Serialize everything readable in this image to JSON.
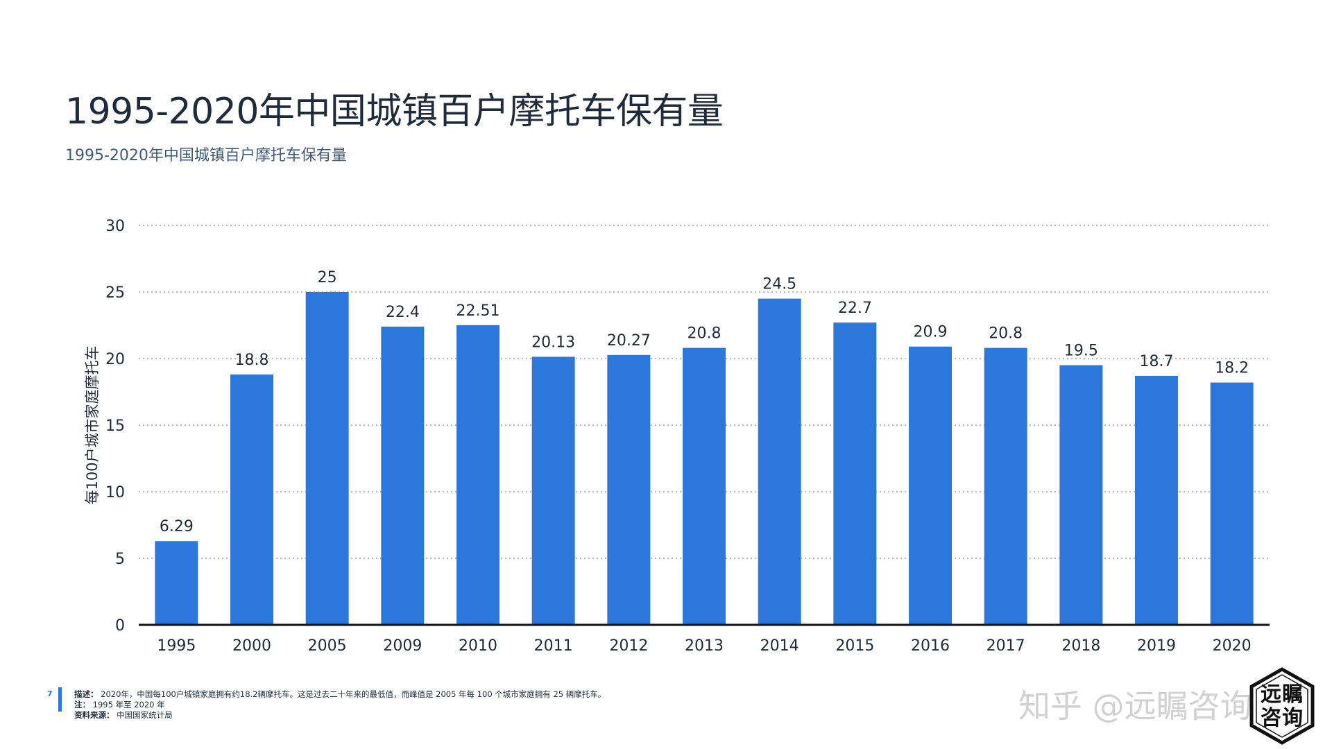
{
  "header": {
    "title": "1995-2020年中国城镇百户摩托车保有量",
    "subtitle": "1995-2020年中国城镇百户摩托车保有量"
  },
  "chart_data": {
    "type": "bar",
    "title": "1995-2020年中国城镇百户摩托车保有量",
    "xlabel": "",
    "ylabel": "每100户城市家庭摩托车",
    "categories": [
      "1995",
      "2000",
      "2005",
      "2009",
      "2010",
      "2011",
      "2012",
      "2013",
      "2014",
      "2015",
      "2016",
      "2017",
      "2018",
      "2019",
      "2020"
    ],
    "values": [
      6.29,
      18.8,
      25,
      22.4,
      22.51,
      20.13,
      20.27,
      20.8,
      24.5,
      22.7,
      20.9,
      20.8,
      19.5,
      18.7,
      18.2
    ],
    "value_labels": [
      "6.29",
      "18.8",
      "25",
      "22.4",
      "22.51",
      "20.13",
      "20.27",
      "20.8",
      "24.5",
      "22.7",
      "20.9",
      "20.8",
      "19.5",
      "18.7",
      "18.2"
    ],
    "ylim": [
      0,
      30
    ],
    "yticks": [
      "0",
      "5",
      "10",
      "15",
      "20",
      "25",
      "30"
    ],
    "grid": true,
    "bar_color": "#2b77db"
  },
  "footer": {
    "page_number": "7",
    "description_label": "描述：",
    "description": "2020年，中国每100户城镇家庭拥有约18.2辆摩托车。这是过去二十年来的最低值，而峰值是 2005 年每 100 个城市家庭拥有 25 辆摩托车。",
    "note_label": "注：",
    "note": "1995 年至 2020 年",
    "source_label": "资料来源：",
    "source": "中国国家统计局"
  },
  "watermark": {
    "text": "知乎 @远瞩咨询"
  },
  "logo": {
    "text": "远瞩咨询"
  }
}
